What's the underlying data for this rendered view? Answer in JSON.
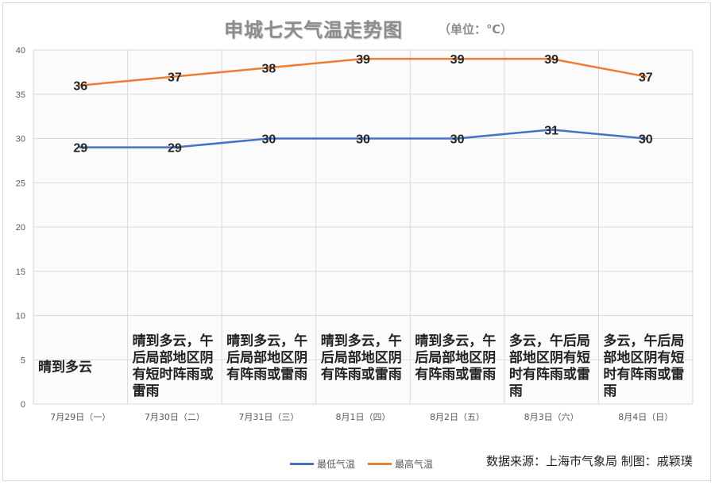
{
  "title": "申城七天气温走势图",
  "unit": "（单位：℃）",
  "source": "数据来源：上海市气象局   制图：戚颖璞",
  "colors": {
    "low": "#4472c4",
    "high": "#ed7d31",
    "grid": "#d9d9d9",
    "axis_text": "#595959"
  },
  "weather": [
    "晴到多云",
    "晴到多云，午后局部地区阴有短时阵雨或雷雨",
    "晴到多云，午后局部地区阴有阵雨或雷雨",
    "晴到多云，午后局部地区阴有阵雨或雷雨",
    "晴到多云，午后局部地区阴有阵雨或雷雨",
    "多云，午后局部地区阴有短时有阵雨或雷雨",
    "多云，午后局部地区阴有短时有阵雨或雷雨"
  ],
  "chart_data": {
    "type": "line",
    "title": "申城七天气温走势图",
    "categories": [
      "7月29日（一）",
      "7月30日（二）",
      "7月31日（三）",
      "8月1日（四）",
      "8月2日（五）",
      "8月3日（六）",
      "8月4日（日）"
    ],
    "series": [
      {
        "name": "最低气温",
        "values": [
          29,
          29,
          30,
          30,
          30,
          31,
          30
        ],
        "color": "#4472c4"
      },
      {
        "name": "最高气温",
        "values": [
          36,
          37,
          38,
          39,
          39,
          39,
          37
        ],
        "color": "#ed7d31"
      }
    ],
    "ylim": [
      0,
      40
    ],
    "yticks": [
      0,
      5,
      10,
      15,
      20,
      25,
      30,
      35,
      40
    ],
    "grid": true,
    "legend": "bottom",
    "data_labels": true
  }
}
